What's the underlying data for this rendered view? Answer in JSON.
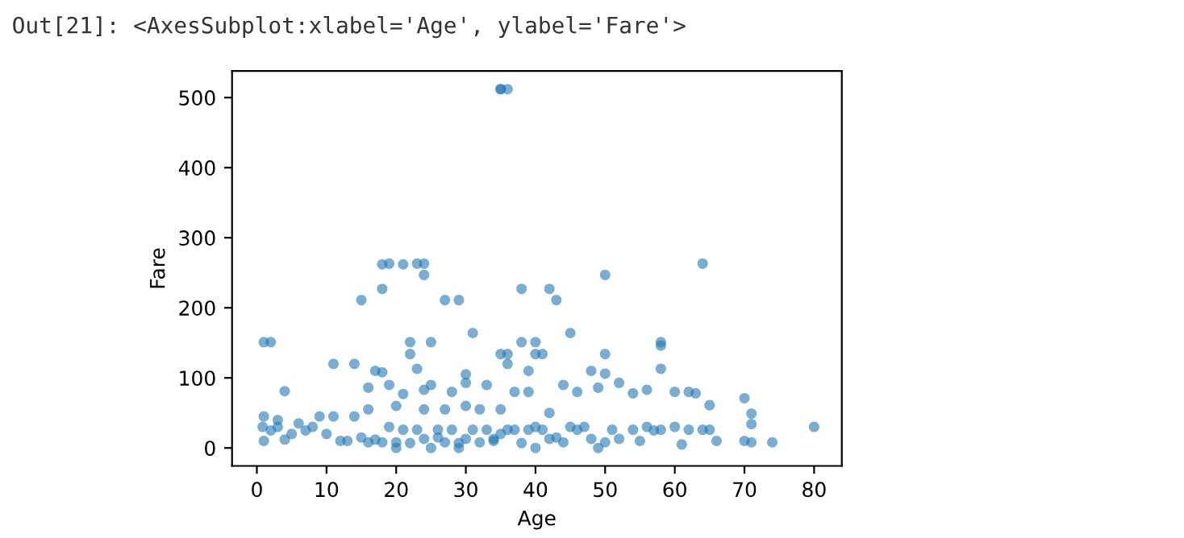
{
  "chart_data": {
    "type": "scatter",
    "xlabel": "Age",
    "ylabel": "Fare",
    "annotations": [
      "Out[21]: <AxesSubplot:xlabel='Age', ylabel='Fare'>"
    ],
    "xlim": [
      -3.56,
      83.98
    ],
    "ylim": [
      -25.6,
      537.9
    ],
    "xticks": [
      0,
      10,
      20,
      30,
      40,
      50,
      60,
      70,
      80
    ],
    "yticks": [
      0,
      100,
      200,
      300,
      400,
      500
    ],
    "grid": false,
    "marker": "circle",
    "series": [
      {
        "color": "#1f77b4",
        "x": [
          35,
          36,
          35,
          18,
          19,
          21,
          23,
          24,
          24,
          18,
          15,
          27,
          29,
          38,
          42,
          43,
          50,
          64,
          1,
          2,
          11,
          14,
          22,
          22,
          23,
          25,
          31,
          35,
          36,
          36,
          38,
          40,
          40,
          41,
          45,
          48,
          50,
          50,
          58,
          58,
          58,
          4,
          17,
          18,
          16,
          19,
          21,
          24,
          25,
          28,
          30,
          30,
          33,
          37,
          39,
          39,
          44,
          46,
          49,
          52,
          54,
          56,
          60,
          62,
          63,
          65,
          70,
          71,
          71,
          80,
          74,
          70,
          71,
          66,
          65,
          61,
          60,
          55,
          57,
          50,
          49,
          45,
          42,
          40,
          35,
          32,
          30,
          27,
          24,
          20,
          16,
          14,
          11,
          9,
          6,
          3,
          1,
          1,
          2,
          4,
          0.83,
          5,
          8,
          10,
          13,
          16,
          18,
          20,
          22,
          24,
          25,
          27,
          29,
          30,
          32,
          34,
          36,
          38,
          40,
          42,
          44,
          46,
          48,
          51,
          54,
          56,
          58,
          62,
          64,
          19,
          21,
          23,
          26,
          28,
          31,
          33,
          35,
          37,
          39,
          41,
          43,
          47,
          52,
          20,
          29,
          15,
          17,
          26,
          34,
          3,
          7,
          12
        ],
        "values": [
          512,
          512,
          512,
          262,
          263,
          262,
          263,
          263,
          247,
          227,
          211,
          211,
          211,
          227,
          227,
          211,
          247,
          263,
          151,
          151,
          120,
          120,
          151,
          134,
          113,
          151,
          164,
          134,
          134,
          120,
          151,
          151,
          134,
          134,
          164,
          110,
          134,
          106,
          151,
          146,
          113,
          81,
          110,
          108,
          86,
          90,
          77,
          83,
          90,
          80,
          105,
          93,
          90,
          80,
          110,
          80,
          90,
          80,
          86,
          93,
          78,
          83,
          80,
          80,
          78,
          61,
          71,
          49,
          34,
          30,
          8,
          10,
          8,
          10,
          26,
          5,
          30,
          10,
          25,
          8,
          0,
          30,
          50,
          30,
          55,
          55,
          60,
          55,
          55,
          60,
          55,
          45,
          45,
          45,
          35,
          40,
          45,
          10,
          25,
          12,
          30,
          20,
          30,
          20,
          10,
          8,
          8,
          8,
          7,
          13,
          0,
          8,
          7,
          13,
          8,
          13,
          26,
          7,
          0,
          13,
          8,
          26,
          13,
          26,
          26,
          30,
          26,
          26,
          26,
          30,
          26,
          26,
          26,
          26,
          26,
          26,
          20,
          26,
          26,
          26,
          15,
          30,
          13,
          0,
          0,
          15,
          12,
          15,
          10,
          30,
          25,
          10
        ]
      }
    ]
  }
}
